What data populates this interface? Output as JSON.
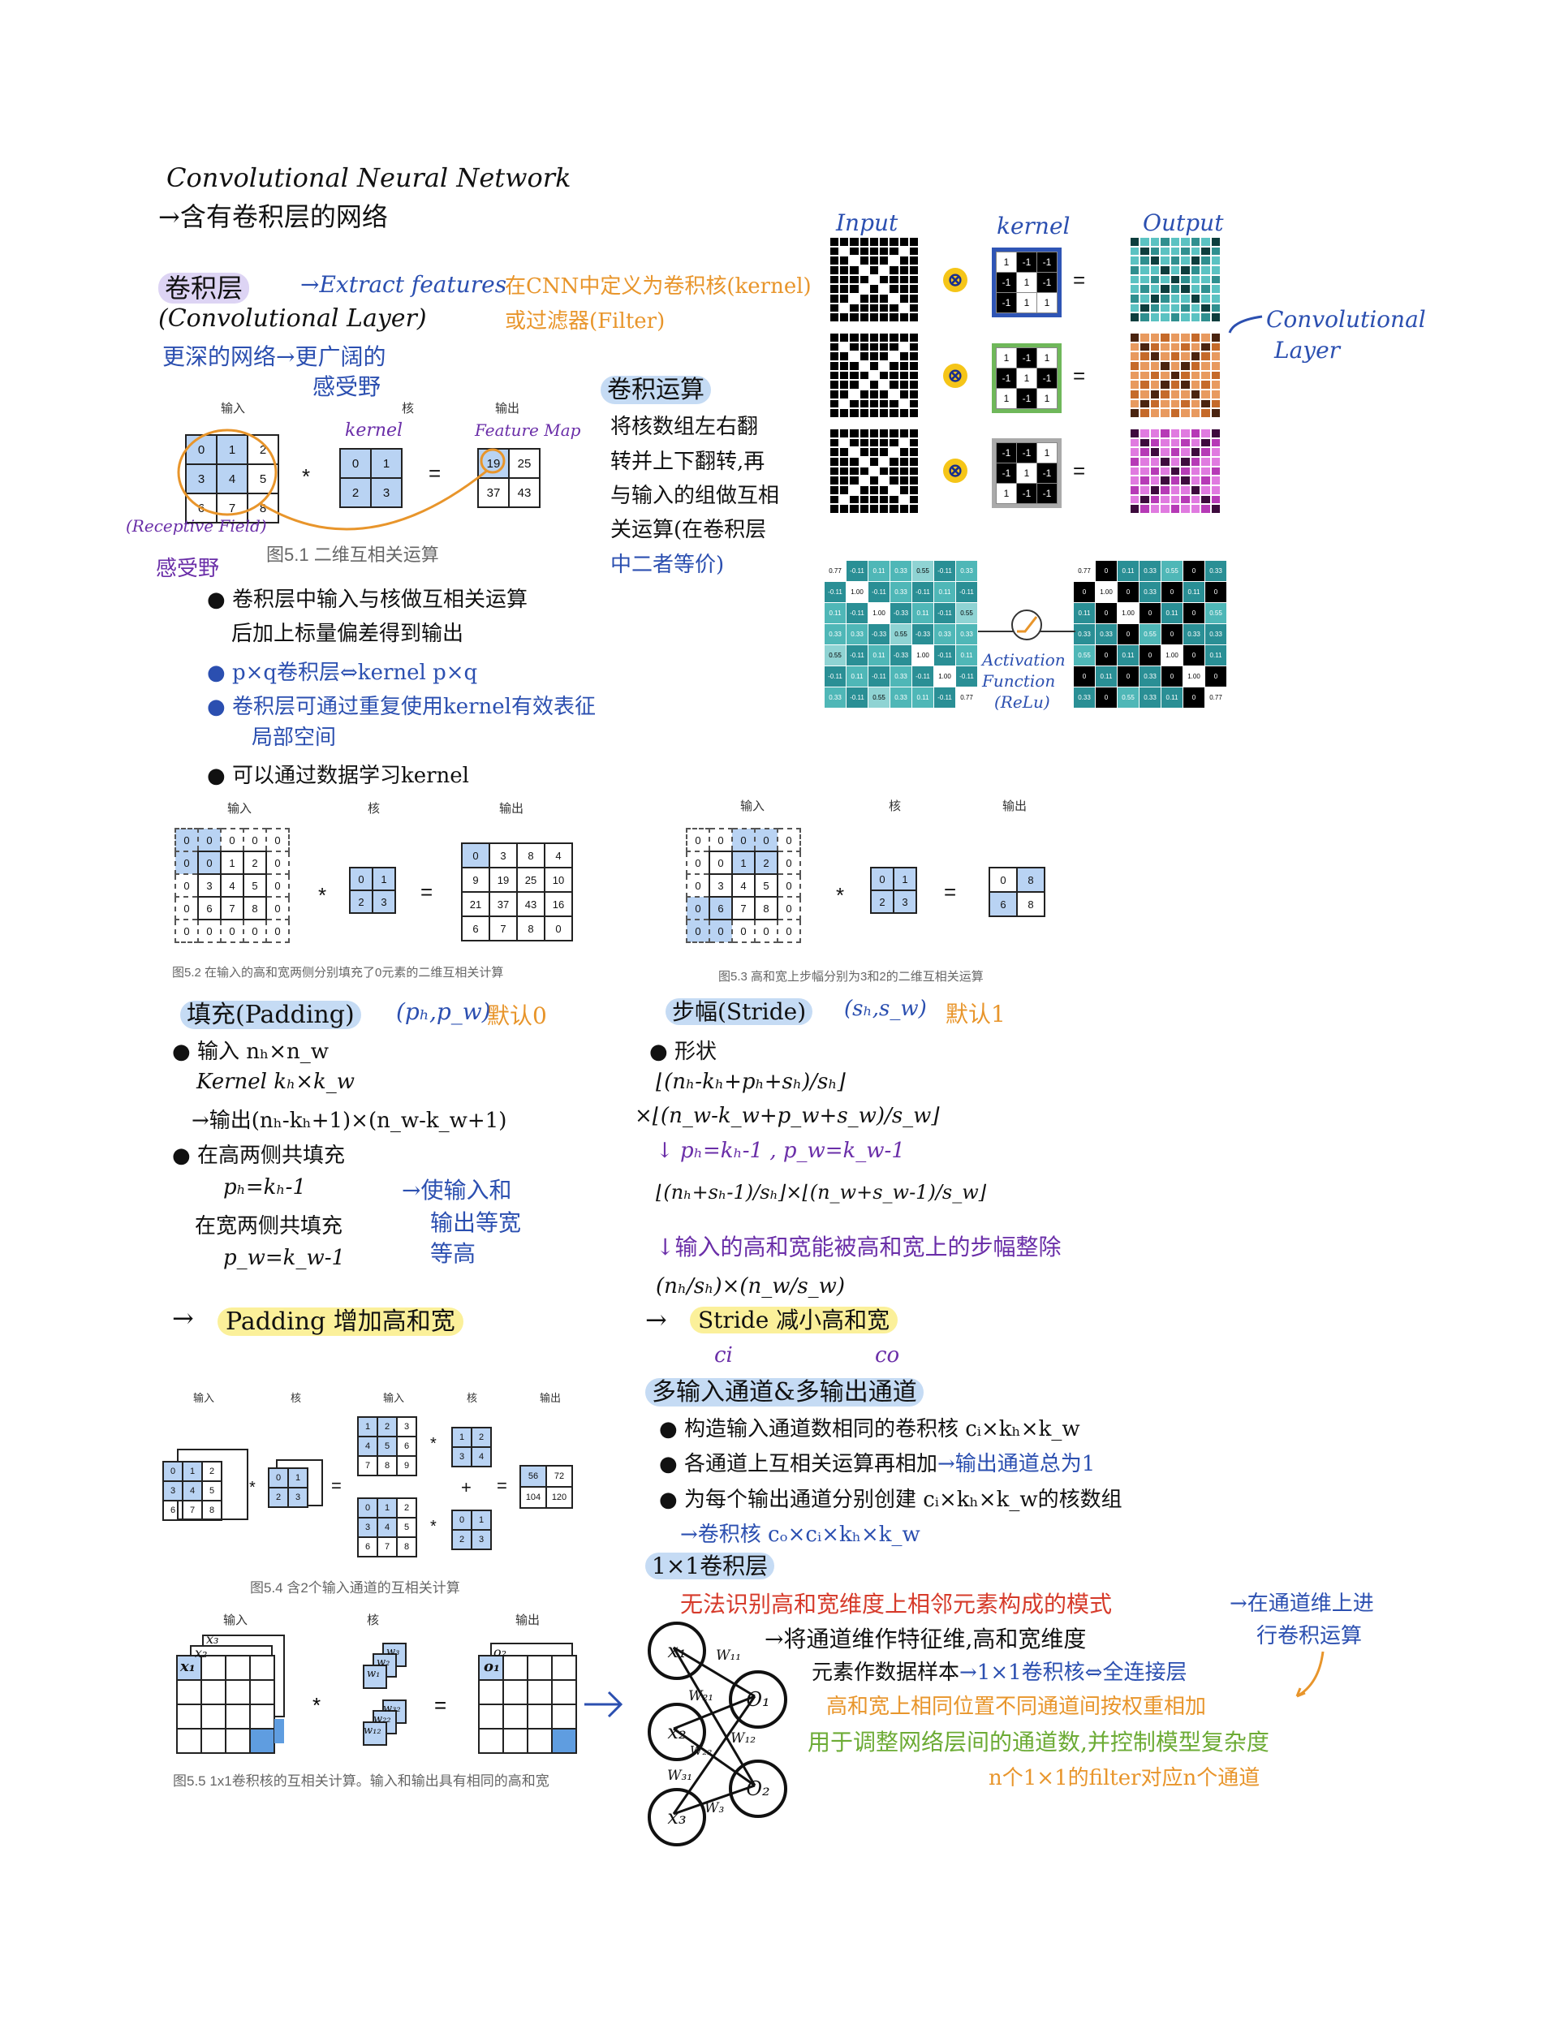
{
  "title": {
    "line1": "Convolutional Neural Network",
    "line2": "→含有卷积层的网络"
  },
  "conv_layer": {
    "name": "卷积层",
    "arrow_text": "→Extract features",
    "name_en": "(Convolutional Layer)",
    "kernel_def": "在CNN中定义为卷积核(kernel)",
    "filter_def": "或过滤器(Filter)",
    "deeper": "更深的网络→更广阔的",
    "receptive": "感受野"
  },
  "fig51": {
    "input_label": "输入",
    "kernel_label": "核",
    "output_label": "输出",
    "kernel_hw": "kernel",
    "feature_map": "Feature Map",
    "input": [
      [
        "0",
        "1",
        "2"
      ],
      [
        "3",
        "4",
        "5"
      ],
      [
        "6",
        "7",
        "8"
      ]
    ],
    "kernel": [
      [
        "0",
        "1"
      ],
      [
        "2",
        "3"
      ]
    ],
    "output": [
      [
        "19",
        "25"
      ],
      [
        "37",
        "43"
      ]
    ],
    "receptive_field": "(Receptive Field)",
    "receptive_cn": "感受野",
    "caption": "图5.1 二维互相关运算"
  },
  "conv_op": {
    "title": "卷积运算",
    "body": [
      "将核数组左右翻",
      "转并上下翻转,再",
      "与输入的组做互相",
      "关运算(在卷积层",
      "中二者等价)"
    ]
  },
  "notes_a": {
    "b1": "卷积层中输入与核做互相关运算",
    "b1b": "后加上标量偏差得到输出",
    "b2": "p×q卷积层⇔kernel p×q",
    "b3": "卷积层可通过重复使用kernel有效表征",
    "b3b": "局部空间",
    "b4": "可以通过数据学习kernel"
  },
  "cnn_figure": {
    "input": "Input",
    "kernel": "kernel",
    "output": "Output",
    "conv_layer": "Convolutional",
    "conv_layer2": "Layer",
    "kernels": [
      [
        [
          "1",
          "-1",
          "-1"
        ],
        [
          "-1",
          "1",
          "-1"
        ],
        [
          "-1",
          "1",
          "1"
        ]
      ],
      [
        [
          "1",
          "-1",
          "1"
        ],
        [
          "-1",
          "1",
          "-1"
        ],
        [
          "1",
          "-1",
          "1"
        ]
      ],
      [
        [
          "-1",
          "-1",
          "1"
        ],
        [
          "-1",
          "1",
          "-1"
        ],
        [
          "1",
          "-1",
          "-1"
        ]
      ]
    ],
    "act1": "Activation",
    "act2": "Function",
    "act3": "(ReLu)",
    "table_left": [
      [
        "0.77",
        "-0.11",
        "0.11",
        "0.33",
        "0.55",
        "-0.11",
        "0.33"
      ],
      [
        "-0.11",
        "1.00",
        "-0.11",
        "0.33",
        "-0.11",
        "0.11",
        "-0.11"
      ],
      [
        "0.11",
        "-0.11",
        "1.00",
        "-0.33",
        "0.11",
        "-0.11",
        "0.55"
      ],
      [
        "0.33",
        "0.33",
        "-0.33",
        "0.55",
        "-0.33",
        "0.33",
        "0.33"
      ],
      [
        "0.55",
        "-0.11",
        "0.11",
        "-0.33",
        "1.00",
        "-0.11",
        "0.11"
      ],
      [
        "-0.11",
        "0.11",
        "-0.11",
        "0.33",
        "-0.11",
        "1.00",
        "-0.11"
      ],
      [
        "0.33",
        "-0.11",
        "0.55",
        "0.33",
        "0.11",
        "-0.11",
        "0.77"
      ]
    ],
    "table_right": [
      [
        "0.77",
        "0",
        "0.11",
        "0.33",
        "0.55",
        "0",
        "0.33"
      ],
      [
        "0",
        "1.00",
        "0",
        "0.33",
        "0",
        "0.11",
        "0"
      ],
      [
        "0.11",
        "0",
        "1.00",
        "0",
        "0.11",
        "0",
        "0.55"
      ],
      [
        "0.33",
        "0.33",
        "0",
        "0.55",
        "0",
        "0.33",
        "0.33"
      ],
      [
        "0.55",
        "0",
        "0.11",
        "0",
        "1.00",
        "0",
        "0.11"
      ],
      [
        "0",
        "0.11",
        "0",
        "0.33",
        "0",
        "1.00",
        "0"
      ],
      [
        "0.33",
        "0",
        "0.55",
        "0.33",
        "0.11",
        "0",
        "0.77"
      ]
    ]
  },
  "fig52": {
    "input_label": "输入",
    "kernel_label": "核",
    "output_label": "输出",
    "input": [
      [
        "0",
        "0",
        "0",
        "0",
        "0"
      ],
      [
        "0",
        "0",
        "1",
        "2",
        "0"
      ],
      [
        "0",
        "3",
        "4",
        "5",
        "0"
      ],
      [
        "0",
        "6",
        "7",
        "8",
        "0"
      ],
      [
        "0",
        "0",
        "0",
        "0",
        "0"
      ]
    ],
    "kernel": [
      [
        "0",
        "1"
      ],
      [
        "2",
        "3"
      ]
    ],
    "output": [
      [
        "0",
        "3",
        "8",
        "4"
      ],
      [
        "9",
        "19",
        "25",
        "10"
      ],
      [
        "21",
        "37",
        "43",
        "16"
      ],
      [
        "6",
        "7",
        "8",
        "0"
      ]
    ],
    "caption": "图5.2 在输入的高和宽两侧分别填充了0元素的二维互相关计算"
  },
  "fig53": {
    "input_label": "输入",
    "kernel_label": "核",
    "output_label": "输出",
    "input": [
      [
        "0",
        "0",
        "0",
        "0",
        "0"
      ],
      [
        "0",
        "0",
        "1",
        "2",
        "0"
      ],
      [
        "0",
        "3",
        "4",
        "5",
        "0"
      ],
      [
        "0",
        "6",
        "7",
        "8",
        "0"
      ],
      [
        "0",
        "0",
        "0",
        "0",
        "0"
      ]
    ],
    "kernel": [
      [
        "0",
        "1"
      ],
      [
        "2",
        "3"
      ]
    ],
    "output": [
      [
        "0",
        "8"
      ],
      [
        "6",
        "8"
      ]
    ],
    "caption": "图5.3 高和宽上步幅分别为3和2的二维互相关运算"
  },
  "padding": {
    "title": "填充(Padding)",
    "params": "(pₕ,p_w)",
    "default": "默认0",
    "l1": "输入 nₕ×n_w",
    "l2": "Kernel kₕ×k_w",
    "l3": "→输出(nₕ-kₕ+1)×(n_w-k_w+1)",
    "l4": "在高两侧共填充",
    "l5": "pₕ=kₕ-1",
    "l6": "在宽两侧共填充",
    "l7": "p_w=k_w-1",
    "note1": "→使输入和",
    "note2": "输出等宽",
    "note3": "等高",
    "summary_arrow": "→",
    "summary": "Padding 增加高和宽"
  },
  "stride": {
    "title": "步幅(Stride)",
    "params": "(sₕ,s_w)",
    "default": "默认1",
    "l1": "形状",
    "l2": "⌊(nₕ-kₕ+pₕ+sₕ)/sₕ⌋",
    "l3": "×⌊(n_w-k_w+p_w+s_w)/s_w⌋",
    "l4": "↓ pₕ=kₕ-1 , p_w=k_w-1",
    "l5": "⌊(nₕ+sₕ-1)/sₕ⌋×⌊(n_w+s_w-1)/s_w⌋",
    "l6": "↓输入的高和宽能被高和宽上的步幅整除",
    "l7": "(nₕ/sₕ)×(n_w/s_w)",
    "summary_arrow": "→",
    "summary": "Stride 减小高和宽"
  },
  "fig54": {
    "input_label": "输入",
    "kernel_label": "核",
    "input_label2": "输入",
    "kernel_label2": "核",
    "output_label": "输出",
    "in_a": [
      [
        "0",
        "1",
        "2"
      ],
      [
        "3",
        "4",
        "5"
      ],
      [
        "6",
        "7",
        "8"
      ]
    ],
    "k_a": [
      [
        "0",
        "1"
      ],
      [
        "2",
        "3"
      ]
    ],
    "in_top": [
      [
        "1",
        "2",
        "3"
      ],
      [
        "4",
        "5",
        "6"
      ],
      [
        "7",
        "8",
        "9"
      ]
    ],
    "k_top": [
      [
        "1",
        "2"
      ],
      [
        "3",
        "4"
      ]
    ],
    "in_bot": [
      [
        "0",
        "1",
        "2"
      ],
      [
        "3",
        "4",
        "5"
      ],
      [
        "6",
        "7",
        "8"
      ]
    ],
    "k_bot": [
      [
        "0",
        "1"
      ],
      [
        "2",
        "3"
      ]
    ],
    "output": [
      [
        "56",
        "72"
      ],
      [
        "104",
        "120"
      ]
    ],
    "caption": "图5.4 含2个输入通道的互相关计算"
  },
  "channels": {
    "ci": "ci",
    "co": "co",
    "title": "多输入通道&多输出通道",
    "b1": "构造输入通道数相同的卷积核 cᵢ×kₕ×k_w",
    "b2": "各通道上互相关运算再相加",
    "b2b": "→输出通道总为1",
    "b3": "为每个输出通道分别创建 cᵢ×kₕ×k_w的核数组",
    "b4": "→卷积核 cₒ×cᵢ×kₕ×k_w"
  },
  "conv1x1": {
    "title": "1×1卷积层",
    "l1": "无法识别高和宽维度上相邻元素构成的模式",
    "l1b": "→在通道维上进",
    "l1c": "行卷积运算",
    "l2": "→将通道维作特征维,高和宽维度",
    "l3": "元素作数据样本",
    "l3b": "→1×1卷积核⇔全连接层",
    "l4": "高和宽上相同位置不同通道间按权重相加",
    "l5": "用于调整网络层间的通道数,并控制模型复杂度",
    "l6": "n个1×1的filter对应n个通道"
  },
  "fig55": {
    "input_label": "输入",
    "kernel_label": "核",
    "output_label": "输出",
    "x1": "x₁",
    "x2": "x₂",
    "x3": "x₃",
    "w1": "w₁",
    "w2": "w₂",
    "w3": "w₃",
    "w11": "w₁₁",
    "w12": "w₁₂",
    "w21": "w₂₁",
    "w22": "w₂₂",
    "w31": "w₃₁",
    "w32": "w₃₂",
    "o1": "o₁",
    "o2": "o₂",
    "caption": "图5.5 1x1卷积核的互相关计算。输入和输出具有相同的高和宽"
  },
  "network": {
    "x1": "x₁",
    "x2": "x₂",
    "x3": "x₃",
    "o1": "O₁",
    "o2": "O₂",
    "w11": "W₁₁",
    "w21": "W₂₁",
    "w22": "W₂₂",
    "w12": "W₁₂",
    "w31": "W₃₁",
    "w3": "W₃"
  }
}
